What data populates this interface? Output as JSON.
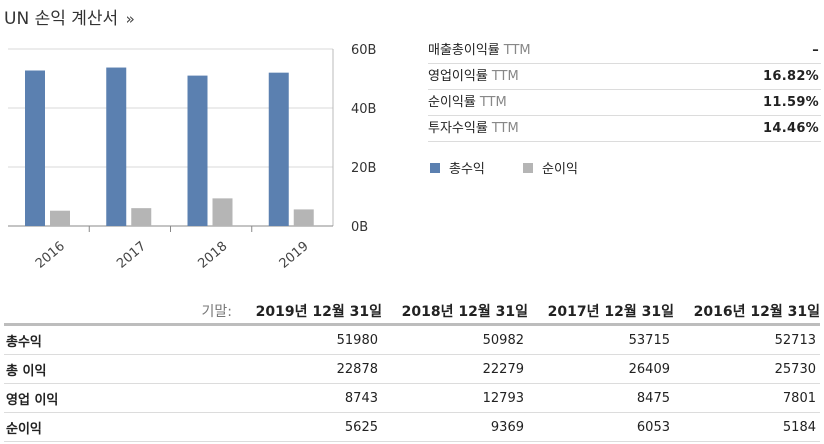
{
  "header": {
    "title": "UN 손익 계산서",
    "chevron": "»"
  },
  "ratios": [
    {
      "label": "매출총이익률",
      "suffix": "TTM",
      "value": "–"
    },
    {
      "label": "영업이익률",
      "suffix": "TTM",
      "value": "16.82%"
    },
    {
      "label": "순이익률",
      "suffix": "TTM",
      "value": "11.59%"
    },
    {
      "label": "투자수익률",
      "suffix": "TTM",
      "value": "14.46%"
    }
  ],
  "legend": [
    {
      "label": "총수익",
      "color": "#5b80b0"
    },
    {
      "label": "순이익",
      "color": "#b5b5b5"
    }
  ],
  "chart_data": {
    "type": "bar",
    "categories": [
      "2016",
      "2017",
      "2018",
      "2019"
    ],
    "series": [
      {
        "name": "총수익",
        "values": [
          52713,
          53715,
          50982,
          51980
        ],
        "color": "#5b80b0"
      },
      {
        "name": "순이익",
        "values": [
          5184,
          6053,
          9369,
          5625
        ],
        "color": "#b5b5b5"
      }
    ],
    "y_ticks": [
      {
        "value": 0,
        "label": "0B"
      },
      {
        "value": 20000,
        "label": "20B"
      },
      {
        "value": 40000,
        "label": "40B"
      },
      {
        "value": 60000,
        "label": "60B"
      }
    ],
    "ylim": [
      0,
      60000
    ],
    "grid": true,
    "legend_position": "right"
  },
  "table": {
    "period_label": "기말:",
    "columns": [
      "2019년 12월 31일",
      "2018년 12월 31일",
      "2017년 12월 31일",
      "2016년 12월 31일"
    ],
    "rows": [
      {
        "name": "총수익",
        "values": [
          "51980",
          "50982",
          "53715",
          "52713"
        ]
      },
      {
        "name": "총 이익",
        "values": [
          "22878",
          "22279",
          "26409",
          "25730"
        ]
      },
      {
        "name": "영업 이익",
        "values": [
          "8743",
          "12793",
          "8475",
          "7801"
        ]
      },
      {
        "name": "순이익",
        "values": [
          "5625",
          "9369",
          "6053",
          "5184"
        ]
      }
    ]
  }
}
